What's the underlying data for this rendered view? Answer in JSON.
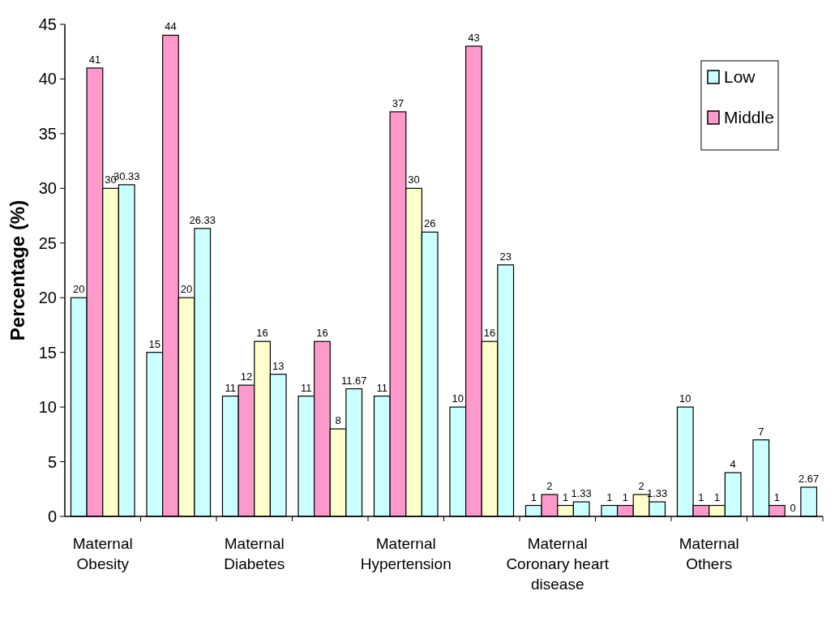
{
  "chart_data": {
    "type": "bar",
    "ylabel": "Percentage (%)",
    "categories": [
      "Maternal Obesity",
      null,
      "Maternal Diabetes",
      null,
      "Maternal Hypertension",
      null,
      "Maternal Coronary heart disease",
      null,
      "Maternal Others",
      null
    ],
    "series": [
      {
        "name": "Low",
        "color": "#ccffff",
        "values": [
          20,
          15,
          11,
          11,
          11,
          10,
          1,
          1,
          10,
          7
        ]
      },
      {
        "name": "Middle",
        "color": "#ff99cc",
        "values": [
          41,
          44,
          12,
          16,
          37,
          43,
          2,
          1,
          1,
          1
        ]
      },
      {
        "color": "#ffffcc",
        "values": [
          30,
          20,
          16,
          8,
          30,
          16,
          1,
          2,
          1,
          0
        ]
      },
      {
        "color": "#ccffff",
        "values": [
          30.33,
          26.33,
          13,
          11.67,
          26,
          23,
          1.33,
          1.33,
          4,
          2.67
        ]
      }
    ],
    "ylim": [
      0,
      45
    ],
    "yticks": [
      0,
      5,
      10,
      15,
      20,
      25,
      30,
      35,
      40,
      45
    ],
    "data_labels": true,
    "grid": false,
    "legend": "top right"
  }
}
